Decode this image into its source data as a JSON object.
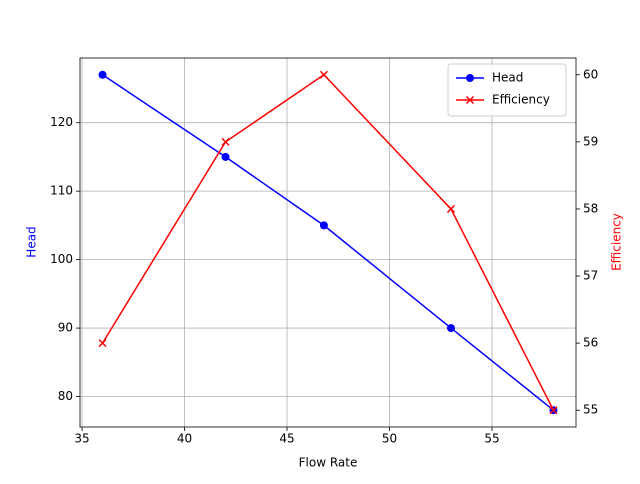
{
  "chart_data": {
    "type": "line",
    "x_label": "Flow Rate",
    "y_label": "Head",
    "y2_label": "Efficiency",
    "x": [
      36,
      42,
      46.8,
      53,
      58
    ],
    "series": [
      {
        "name": "Head",
        "color": "#0000ff",
        "marker": "circle",
        "axis": "y",
        "values": [
          127,
          115,
          105,
          90,
          78
        ]
      },
      {
        "name": "Efficiency",
        "color": "#ff0000",
        "marker": "x",
        "axis": "y2",
        "values": [
          56,
          59,
          60,
          58,
          55
        ]
      }
    ],
    "xlim": [
      34.9,
      59.1
    ],
    "xticks": [
      35,
      40,
      45,
      50,
      55
    ],
    "ylim": [
      75.55,
      129.45
    ],
    "yticks": [
      80,
      90,
      100,
      110,
      120
    ],
    "y2lim": [
      54.75,
      60.25
    ],
    "y2ticks": [
      55,
      56,
      57,
      58,
      59,
      60
    ],
    "grid": true,
    "legend": "upper right"
  }
}
